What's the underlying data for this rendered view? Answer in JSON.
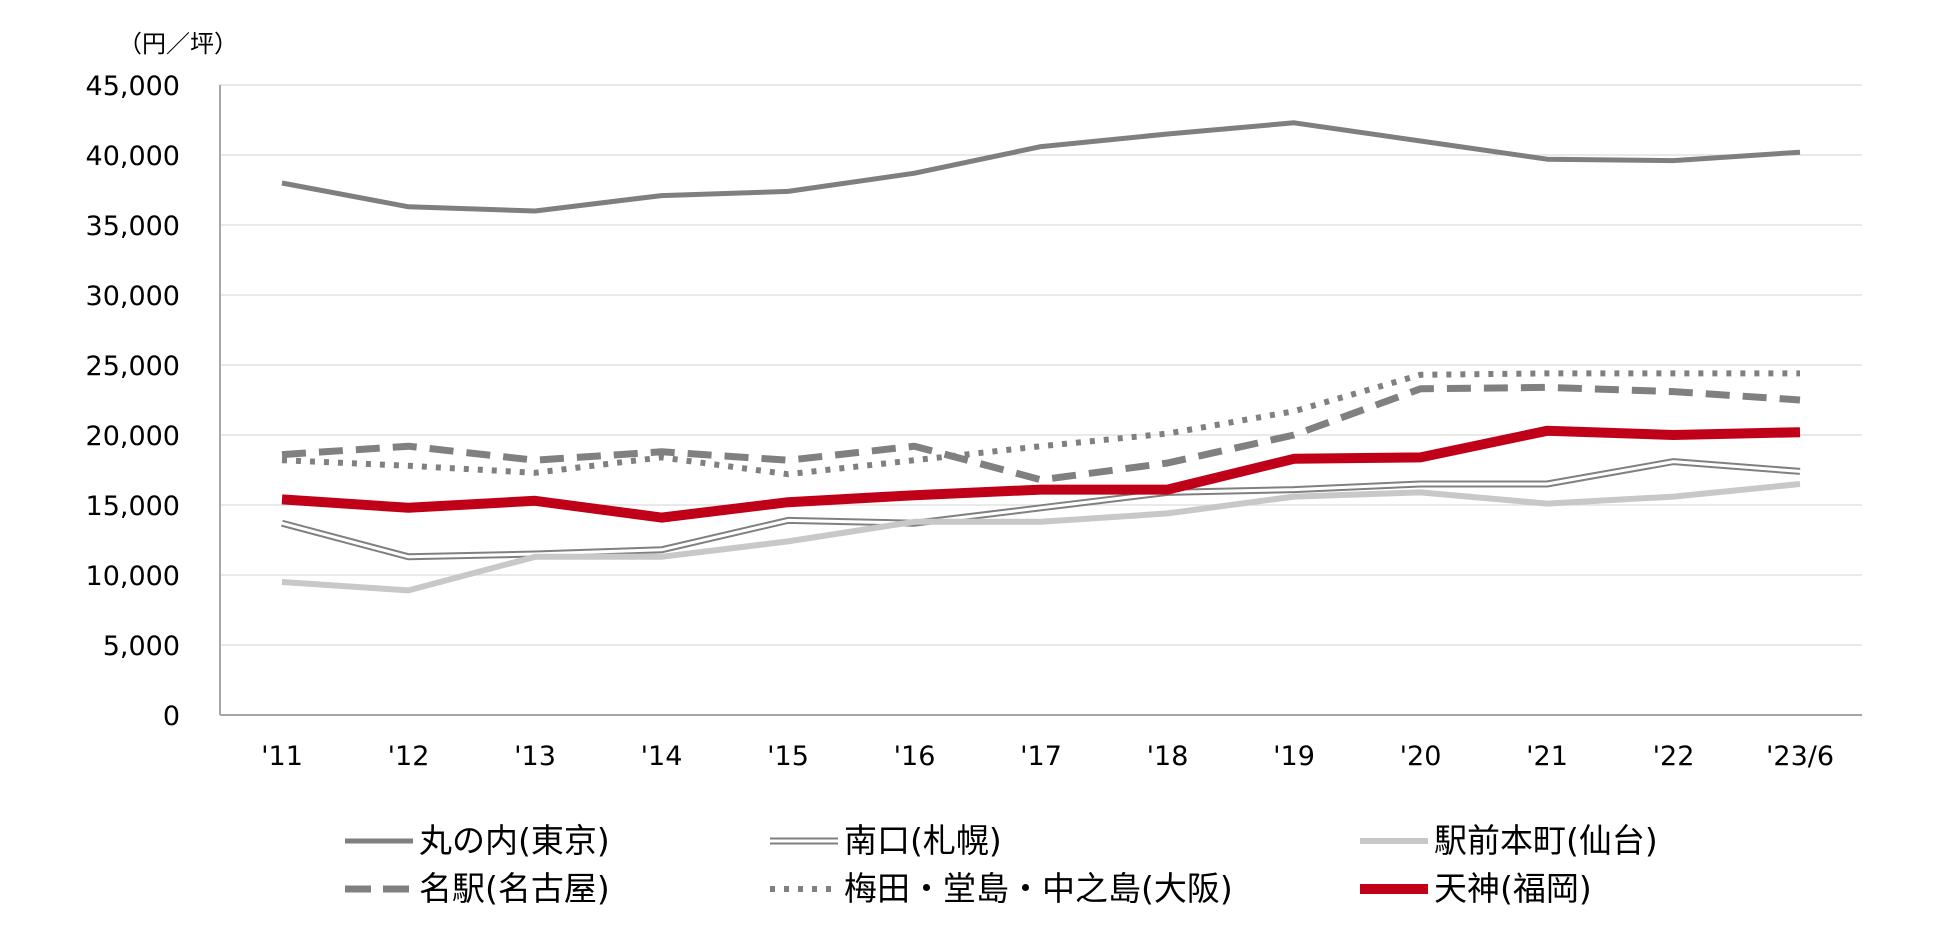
{
  "chart_data": {
    "type": "line",
    "unit_label": "（円／坪）",
    "categories": [
      "'11",
      "'12",
      "'13",
      "'14",
      "'15",
      "'16",
      "'17",
      "'18",
      "'19",
      "'20",
      "'21",
      "'22",
      "'23/6"
    ],
    "ylim": [
      0,
      45000
    ],
    "yticks": [
      0,
      5000,
      10000,
      15000,
      20000,
      25000,
      30000,
      35000,
      40000,
      45000
    ],
    "ytick_labels": [
      "0",
      "5,000",
      "10,000",
      "15,000",
      "20,000",
      "25,000",
      "30,000",
      "35,000",
      "40,000",
      "45,000"
    ],
    "grid": true,
    "legend_position": "bottom",
    "series": [
      {
        "name": "丸の内(東京)",
        "style": "solid",
        "color": "#7f7f7f",
        "values": [
          38000,
          36300,
          36000,
          37100,
          37400,
          38700,
          40600,
          41500,
          42300,
          41000,
          39700,
          39600,
          40200
        ]
      },
      {
        "name": "南口(札幌)",
        "style": "double",
        "color": "#808080",
        "values": [
          13700,
          11300,
          11500,
          11800,
          13900,
          13700,
          14800,
          15900,
          16100,
          16500,
          16500,
          18100,
          17400
        ]
      },
      {
        "name": "駅前本町(仙台)",
        "style": "solid",
        "color": "#c8c8c8",
        "values": [
          9500,
          8900,
          11300,
          11300,
          12400,
          13800,
          13800,
          14400,
          15600,
          15900,
          15100,
          15600,
          16500
        ]
      },
      {
        "name": "名駅(名古屋)",
        "style": "dashed",
        "color": "#808080",
        "values": [
          18600,
          19200,
          18200,
          18800,
          18200,
          19200,
          16800,
          18000,
          20000,
          23300,
          23400,
          23100,
          22500
        ]
      },
      {
        "name": "梅田・堂島・中之島(大阪)",
        "style": "dotted",
        "color": "#808080",
        "values": [
          18200,
          17800,
          17300,
          18400,
          17200,
          18200,
          19200,
          20100,
          21700,
          24300,
          24400,
          24400,
          24400
        ]
      },
      {
        "name": "天神(福岡)",
        "style": "solid",
        "color": "#c00018",
        "values": [
          15400,
          14800,
          15300,
          14100,
          15200,
          15700,
          16100,
          16100,
          18300,
          18400,
          20300,
          20000,
          20200
        ]
      }
    ]
  }
}
